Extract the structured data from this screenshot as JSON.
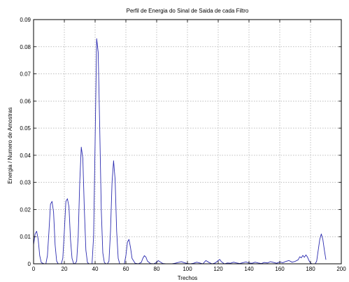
{
  "chart_data": {
    "type": "line",
    "title": "Perfil de Energia do Sinal de Saida de cada Filtro",
    "xlabel": "Trechos",
    "ylabel": "Energia / Numero de Amostras",
    "xlim": [
      0,
      200
    ],
    "ylim": [
      0,
      0.09
    ],
    "xticks": [
      0,
      20,
      40,
      60,
      80,
      100,
      120,
      140,
      160,
      180,
      200
    ],
    "yticks": [
      0,
      0.01,
      0.02,
      0.03,
      0.04,
      0.05,
      0.06,
      0.07,
      0.08,
      0.09
    ],
    "ytick_labels": [
      "0",
      "0.01",
      "0.02",
      "0.03",
      "0.04",
      "0.05",
      "0.06",
      "0.07",
      "0.08",
      "0.09"
    ],
    "grid": true,
    "line_color": "#2b2bb0",
    "series": [
      {
        "x": [
          0,
          1,
          2,
          3,
          4,
          5,
          6,
          7,
          8,
          9,
          10,
          11,
          12,
          13,
          14,
          15,
          16,
          17,
          18,
          19,
          20,
          21,
          22,
          23,
          24,
          25,
          26,
          27,
          28,
          29,
          30,
          31,
          32,
          33,
          34,
          35,
          36,
          37,
          38,
          39,
          40,
          41,
          42,
          43,
          44,
          45,
          46,
          47,
          48,
          49,
          50,
          51,
          52,
          53,
          54,
          55,
          56,
          57,
          58,
          59,
          60,
          61,
          62,
          63,
          64,
          66,
          68,
          70,
          71,
          72,
          73,
          74,
          76,
          78,
          80,
          81,
          82,
          84,
          86,
          90,
          92,
          94,
          96,
          98,
          100,
          102,
          104,
          106,
          108,
          110,
          111,
          112,
          114,
          116,
          118,
          120,
          121,
          122,
          124,
          126,
          128,
          130,
          132,
          134,
          136,
          138,
          140,
          142,
          144,
          146,
          148,
          150,
          152,
          154,
          156,
          158,
          160,
          162,
          164,
          166,
          168,
          170,
          172,
          173,
          174,
          175,
          176,
          177,
          178,
          179,
          180,
          181,
          182,
          183,
          184,
          185,
          186,
          187,
          188,
          189,
          190
        ],
        "y": [
          0.007,
          0.011,
          0.012,
          0.009,
          0.003,
          0.0005,
          0.0002,
          0.0,
          0.0,
          0.003,
          0.012,
          0.022,
          0.023,
          0.019,
          0.007,
          0.001,
          0.0,
          0.0,
          0.0,
          0.002,
          0.012,
          0.023,
          0.024,
          0.021,
          0.009,
          0.002,
          0.0002,
          0.0,
          0.001,
          0.01,
          0.03,
          0.043,
          0.039,
          0.02,
          0.005,
          0.0005,
          0.0,
          0.0,
          0.0,
          0.01,
          0.045,
          0.083,
          0.078,
          0.05,
          0.02,
          0.004,
          0.0005,
          0.0,
          0.0,
          0.001,
          0.012,
          0.03,
          0.038,
          0.031,
          0.012,
          0.002,
          0.0,
          0.0,
          0.0,
          0.0,
          0.003,
          0.008,
          0.009,
          0.006,
          0.002,
          0.0002,
          0.0,
          0.0005,
          0.002,
          0.003,
          0.0025,
          0.001,
          0.0001,
          0.0,
          0.0005,
          0.0012,
          0.0008,
          0.0001,
          0.0,
          0.0,
          0.0002,
          0.0005,
          0.0008,
          0.0004,
          0.0001,
          0.0,
          0.0002,
          0.0006,
          0.0003,
          0.0,
          0.0006,
          0.0012,
          0.0005,
          0.0,
          0.0003,
          0.0012,
          0.0016,
          0.0008,
          0.0,
          0.0003,
          0.0002,
          0.0006,
          0.0003,
          0.0001,
          0.0004,
          0.0007,
          0.0003,
          0.0002,
          0.0006,
          0.0003,
          0.0001,
          0.0005,
          0.0003,
          0.0008,
          0.0005,
          0.0002,
          0.0007,
          0.0004,
          0.0009,
          0.0012,
          0.0006,
          0.0009,
          0.0015,
          0.0026,
          0.0022,
          0.0031,
          0.0024,
          0.0033,
          0.0025,
          0.0012,
          0.0003,
          0.0,
          0.0,
          0.0,
          0.001,
          0.005,
          0.009,
          0.011,
          0.009,
          0.005,
          0.0015
        ]
      }
    ]
  }
}
